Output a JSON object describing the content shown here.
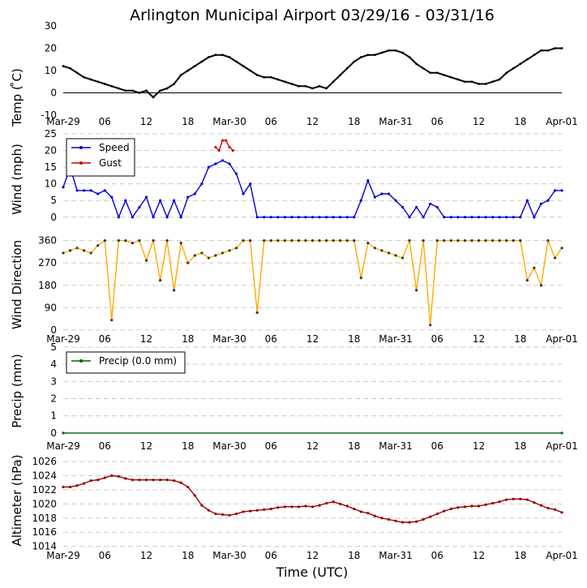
{
  "chart_data": {
    "title": "Arlington Municipal Airport 03/29/16 - 03/31/16",
    "xlabel": "Time (UTC)",
    "x_tick_labels": [
      "Mar-29",
      "06",
      "12",
      "18",
      "Mar-30",
      "06",
      "12",
      "18",
      "Mar-31",
      "06",
      "12",
      "18",
      "Apr-01"
    ],
    "panels": [
      {
        "id": "temp",
        "type": "line",
        "ylabel": "Temp ( ̊C)",
        "ylim": [
          -10,
          30
        ],
        "yticks": [
          -10,
          0,
          10,
          20,
          30
        ],
        "grid": false,
        "zero_line": true,
        "series": [
          {
            "color": "#000000",
            "x": [
              0,
              1,
              2,
              3,
              4,
              5,
              6,
              7,
              8,
              9,
              10,
              11,
              12,
              13,
              14,
              15,
              16,
              17,
              18,
              19,
              20,
              21,
              22,
              23,
              24,
              25,
              26,
              27,
              28,
              29,
              30,
              31,
              32,
              33,
              34,
              35,
              36,
              37,
              38,
              39,
              40,
              41,
              42,
              43,
              44,
              45,
              46,
              47,
              48,
              49,
              50,
              51,
              52,
              53,
              54,
              55,
              56,
              57,
              58,
              59,
              60,
              61,
              62,
              63,
              64,
              65,
              66,
              67,
              68,
              69,
              70,
              71,
              72
            ],
            "values": [
              12,
              11,
              9,
              7,
              6,
              5,
              4,
              3,
              2,
              1,
              1,
              0,
              1,
              -2,
              1,
              2,
              4,
              8,
              10,
              12,
              14,
              16,
              17,
              17,
              16,
              14,
              12,
              10,
              8,
              7,
              7,
              6,
              5,
              4,
              3,
              3,
              2,
              3,
              2,
              5,
              8,
              11,
              14,
              16,
              17,
              17,
              18,
              19,
              19,
              18,
              16,
              13,
              11,
              9,
              9,
              8,
              7,
              6,
              5,
              5,
              4,
              4,
              5,
              6,
              9,
              11,
              13,
              15,
              17,
              19,
              19,
              20,
              20
            ]
          }
        ]
      },
      {
        "id": "wind",
        "type": "line",
        "ylabel": "Wind (mph)",
        "ylim": [
          -2,
          25
        ],
        "yticks": [
          0,
          5,
          10,
          15,
          20,
          25
        ],
        "grid": true,
        "legend": "top-left",
        "series": [
          {
            "name": "Speed",
            "color": "#0000cc",
            "x": [
              0,
              1,
              2,
              3,
              4,
              5,
              6,
              7,
              8,
              9,
              10,
              11,
              12,
              13,
              14,
              15,
              16,
              17,
              18,
              19,
              20,
              21,
              22,
              23,
              24,
              25,
              26,
              27,
              28,
              29,
              30,
              31,
              32,
              33,
              34,
              35,
              36,
              37,
              38,
              39,
              40,
              41,
              42,
              43,
              44,
              45,
              46,
              47,
              48,
              49,
              50,
              51,
              52,
              53,
              54,
              55,
              56,
              57,
              58,
              59,
              60,
              61,
              62,
              63,
              64,
              65,
              66,
              67,
              68,
              69,
              70,
              71,
              72
            ],
            "values": [
              9,
              15,
              8,
              8,
              8,
              7,
              8,
              6,
              0,
              5,
              0,
              3,
              6,
              0,
              5,
              0,
              5,
              0,
              6,
              7,
              10,
              15,
              16,
              17,
              16,
              13,
              7,
              10,
              0,
              0,
              0,
              0,
              0,
              0,
              0,
              0,
              0,
              0,
              0,
              0,
              0,
              0,
              0,
              5,
              11,
              6,
              7,
              7,
              5,
              3,
              0,
              3,
              0,
              4,
              3,
              0,
              0,
              0,
              0,
              0,
              0,
              0,
              0,
              0,
              0,
              0,
              0,
              5,
              0,
              4,
              5,
              8,
              8
            ]
          },
          {
            "name": "Gust",
            "color": "#cc0000",
            "x": [
              22,
              22.5,
              23,
              23.5,
              24,
              24.5
            ],
            "values": [
              21,
              20,
              23,
              23,
              21,
              20
            ]
          }
        ]
      },
      {
        "id": "direction",
        "type": "line",
        "ylabel": "Wind Direction",
        "ylim": [
          -10,
          375
        ],
        "yticks": [
          0,
          90,
          180,
          270,
          360
        ],
        "grid": true,
        "series": [
          {
            "color": "#ffaa00",
            "x": [
              0,
              1,
              2,
              3,
              4,
              5,
              6,
              7,
              8,
              9,
              10,
              11,
              12,
              13,
              14,
              15,
              16,
              17,
              18,
              19,
              20,
              21,
              22,
              23,
              24,
              25,
              26,
              27,
              28,
              29,
              30,
              31,
              32,
              33,
              34,
              35,
              36,
              37,
              38,
              39,
              40,
              41,
              42,
              43,
              44,
              45,
              46,
              47,
              48,
              49,
              50,
              51,
              52,
              53,
              54,
              55,
              56,
              57,
              58,
              59,
              60,
              61,
              62,
              63,
              64,
              65,
              66,
              67,
              68,
              69,
              70,
              71,
              72
            ],
            "values": [
              310,
              320,
              330,
              320,
              310,
              340,
              360,
              40,
              360,
              360,
              350,
              360,
              280,
              360,
              200,
              360,
              160,
              350,
              270,
              300,
              310,
              290,
              300,
              310,
              320,
              330,
              360,
              360,
              70,
              360,
              360,
              360,
              360,
              360,
              360,
              360,
              360,
              360,
              360,
              360,
              360,
              360,
              360,
              210,
              350,
              330,
              320,
              310,
              300,
              290,
              360,
              160,
              360,
              20,
              360,
              360,
              360,
              360,
              360,
              360,
              360,
              360,
              360,
              360,
              360,
              360,
              360,
              200,
              250,
              180,
              360,
              290,
              330
            ]
          }
        ]
      },
      {
        "id": "precip",
        "type": "line",
        "ylabel": "Precip (mm)",
        "ylim": [
          -0.1,
          5
        ],
        "yticks": [
          0,
          1,
          2,
          3,
          4,
          5
        ],
        "grid": true,
        "legend": "top-left",
        "series": [
          {
            "name": "Precip (0.0 mm)",
            "color": "#006600",
            "x": [
              0,
              72
            ],
            "values": [
              0,
              0
            ]
          }
        ]
      },
      {
        "id": "altimeter",
        "type": "line",
        "ylabel": "Altimeter (hPa)",
        "ylim": [
          1013.5,
          1027.5
        ],
        "yticks": [
          1014,
          1016,
          1018,
          1020,
          1022,
          1024,
          1026
        ],
        "grid": true,
        "series": [
          {
            "color": "#990000",
            "x": [
              0,
              1,
              2,
              3,
              4,
              5,
              6,
              7,
              8,
              9,
              10,
              11,
              12,
              13,
              14,
              15,
              16,
              17,
              18,
              19,
              20,
              21,
              22,
              23,
              24,
              25,
              26,
              27,
              28,
              29,
              30,
              31,
              32,
              33,
              34,
              35,
              36,
              37,
              38,
              39,
              40,
              41,
              42,
              43,
              44,
              45,
              46,
              47,
              48,
              49,
              50,
              51,
              52,
              53,
              54,
              55,
              56,
              57,
              58,
              59,
              60,
              61,
              62,
              63,
              64,
              65,
              66,
              67,
              68,
              69,
              70,
              71,
              72
            ],
            "values": [
              1022.4,
              1022.4,
              1022.6,
              1022.9,
              1023.3,
              1023.4,
              1023.7,
              1024,
              1023.9,
              1023.6,
              1023.4,
              1023.4,
              1023.4,
              1023.4,
              1023.4,
              1023.4,
              1023.3,
              1023,
              1022.4,
              1021.2,
              1019.8,
              1019.1,
              1018.6,
              1018.5,
              1018.4,
              1018.6,
              1018.9,
              1019,
              1019.1,
              1019.2,
              1019.3,
              1019.5,
              1019.6,
              1019.6,
              1019.6,
              1019.7,
              1019.6,
              1019.8,
              1020.1,
              1020.3,
              1020,
              1019.7,
              1019.3,
              1018.9,
              1018.7,
              1018.3,
              1018,
              1017.8,
              1017.6,
              1017.4,
              1017.4,
              1017.5,
              1017.8,
              1018.2,
              1018.6,
              1019,
              1019.3,
              1019.5,
              1019.6,
              1019.7,
              1019.7,
              1019.9,
              1020.1,
              1020.3,
              1020.6,
              1020.7,
              1020.7,
              1020.6,
              1020.2,
              1019.8,
              1019.4,
              1019.2,
              1018.8
            ]
          }
        ]
      }
    ]
  }
}
